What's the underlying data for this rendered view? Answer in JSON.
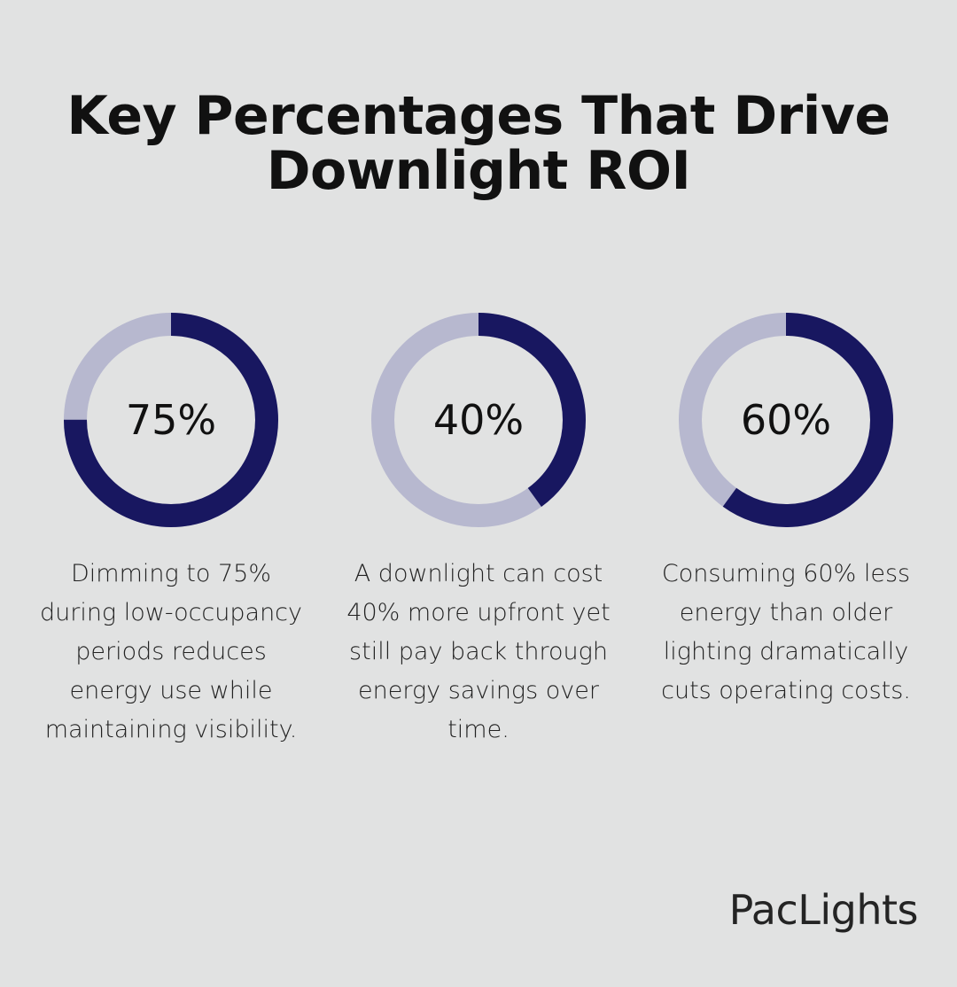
{
  "title_line1": "Key Percentages That Drive",
  "title_line2": "Downlight ROI",
  "brand": "PacLights",
  "colors": {
    "background": "#e1e2e2",
    "filled": "#181760",
    "track": "#b7b8cf"
  },
  "chart_data": {
    "type": "pie",
    "items": [
      {
        "value": 75,
        "label": "75%",
        "description": "Dimming to 75% during low-occupancy periods reduces energy use while maintaining visibility."
      },
      {
        "value": 40,
        "label": "40%",
        "description": "A downlight can cost 40% more upfront yet still pay back through energy savings over time."
      },
      {
        "value": 60,
        "label": "60%",
        "description": "Consuming 60% less energy than older lighting dramatically cuts operating costs."
      }
    ]
  }
}
